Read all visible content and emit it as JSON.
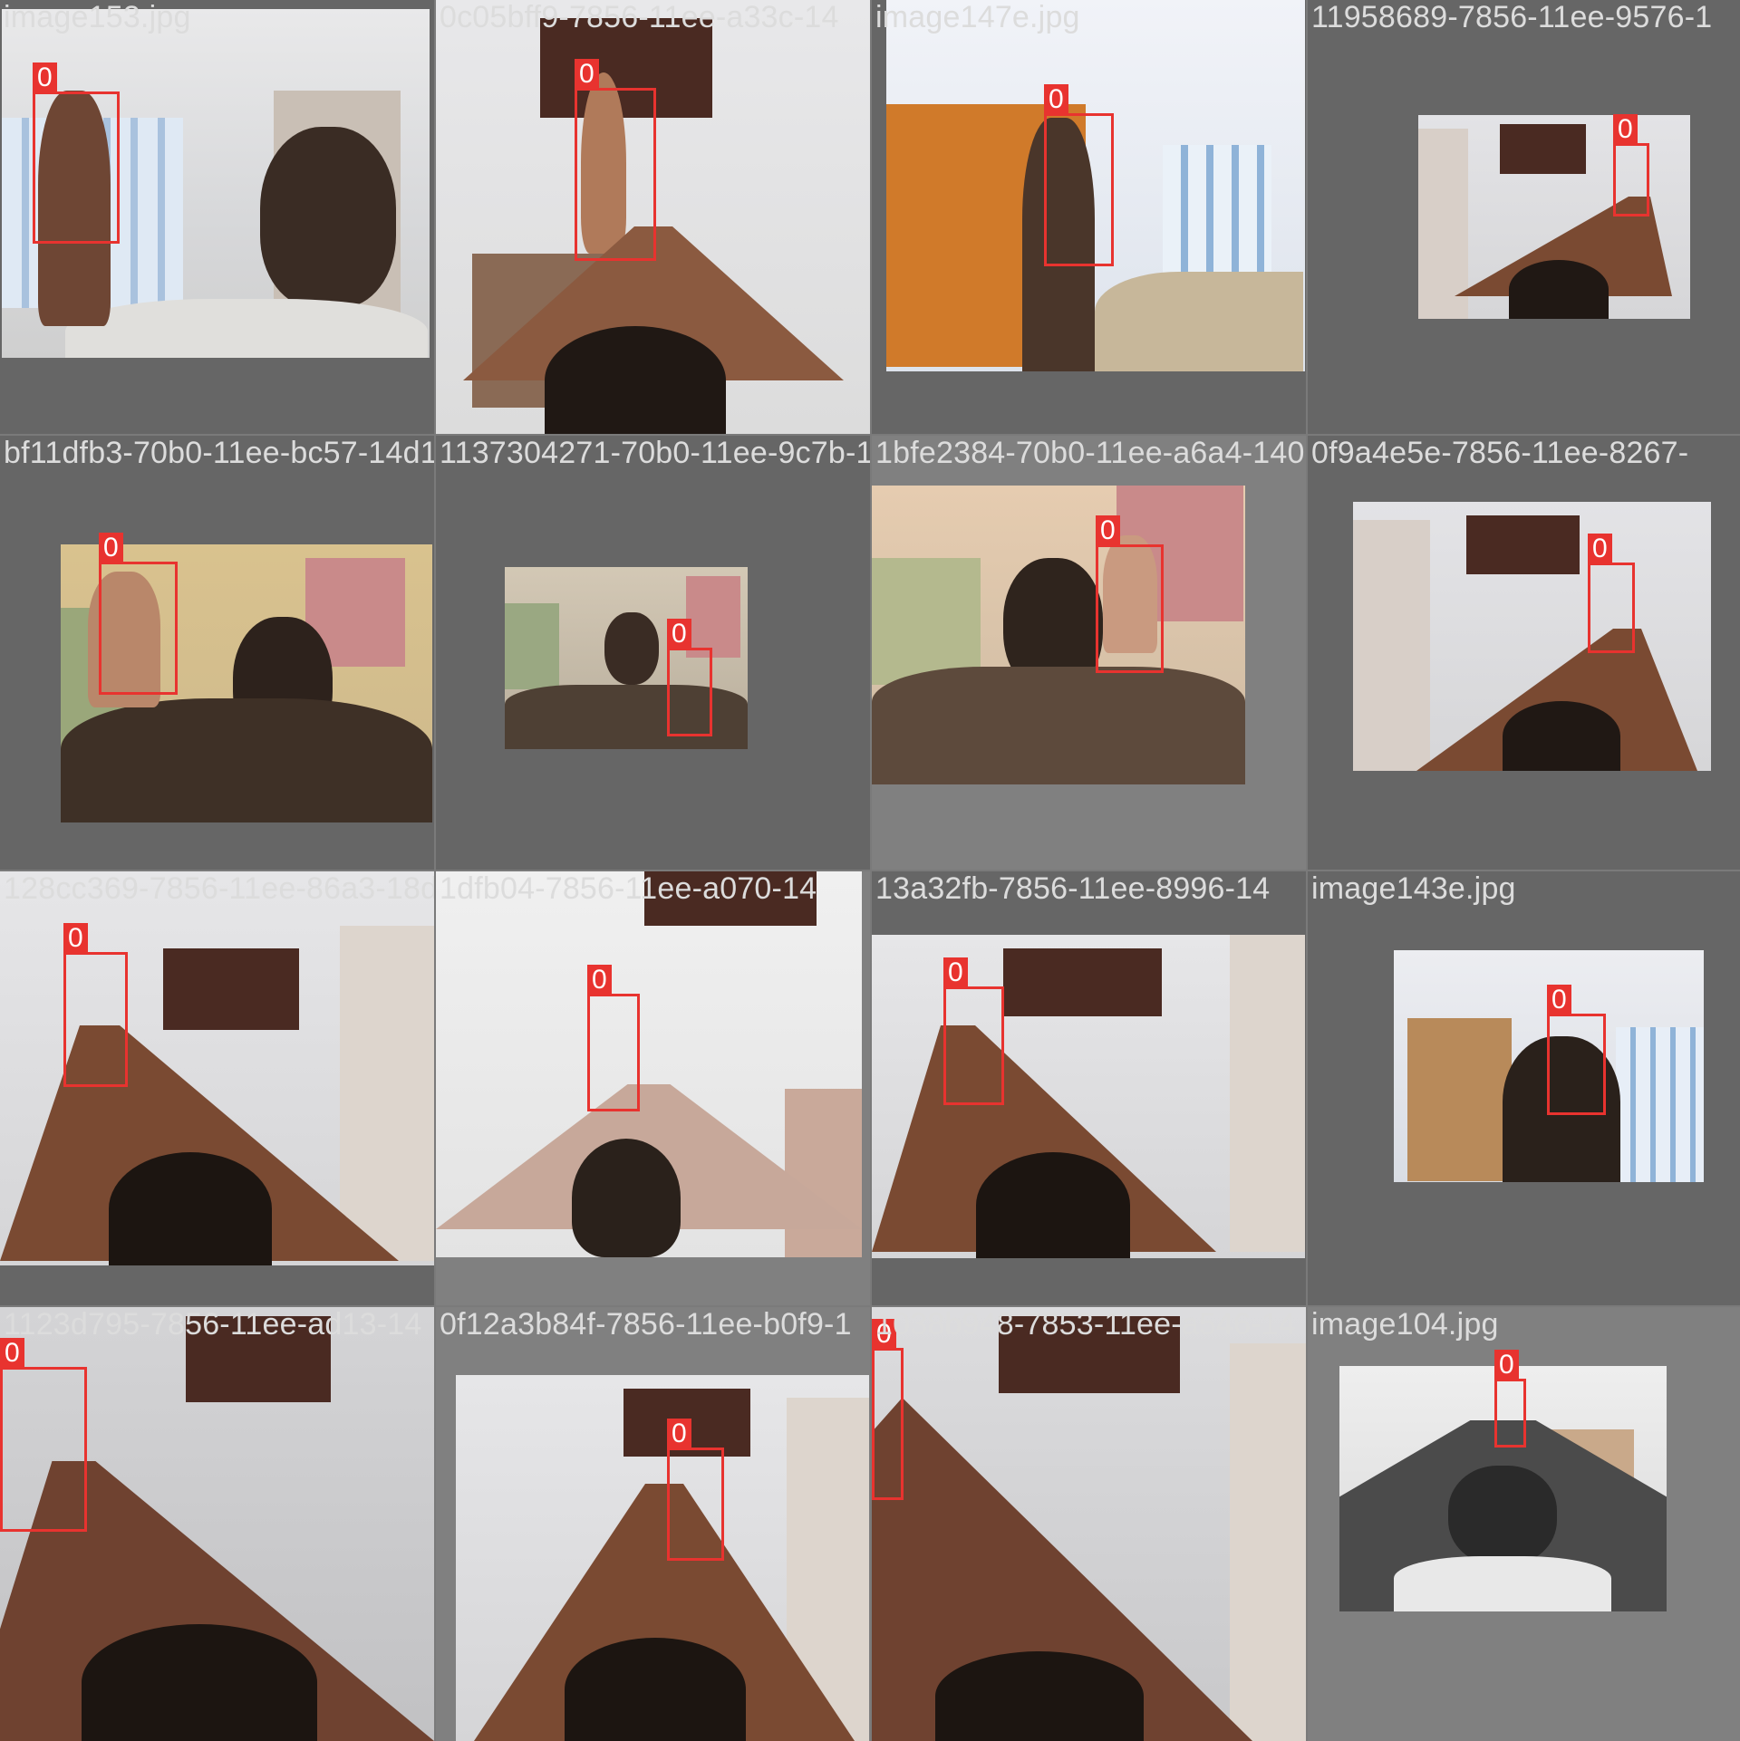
{
  "tiles": [
    {
      "filename": "image153.jpg",
      "label": "0"
    },
    {
      "filename": "0c05bff9-7856-11ee-a33c-14",
      "label": "0"
    },
    {
      "filename": "image147e.jpg",
      "label": "0"
    },
    {
      "filename": "11958689-7856-11ee-9576-1",
      "label": "0"
    },
    {
      "filename": "bf11dfb3-70b0-11ee-bc57-14d13331e27e0bjpg",
      "label": "0"
    },
    {
      "filename": "1137304271-70b0-11ee-9c7b-1",
      "label": "0"
    },
    {
      "filename": "1bfe2384-70b0-11ee-a6a4-1409a1a374ed8jpg",
      "label": "0"
    },
    {
      "filename": "0f9a4e5e-7856-11ee-8267-",
      "label": "0"
    },
    {
      "filename": "128cc369-7856-11ee-86a3-18df6fb3e7e8ejpg",
      "label": "0"
    },
    {
      "filename": "1dfb04-7856-11ee-a070-14",
      "label": "0"
    },
    {
      "filename": "13a32fb-7856-11ee-8996-14",
      "label": "0"
    },
    {
      "filename": "image143e.jpg",
      "label": "0"
    },
    {
      "filename": "1123d795-7856-11ee-ad13-14",
      "label": "0"
    },
    {
      "filename": "0f12a3b84f-7856-11ee-b0f9-1",
      "label": "0"
    },
    {
      "filename": "1038b948-7853-11ee-a546-14",
      "label": "0"
    },
    {
      "filename": "image104.jpg",
      "label": "0"
    }
  ],
  "colors": {
    "box": "#e8332f",
    "tile_dark": "#666666",
    "tile_light": "#808080"
  }
}
